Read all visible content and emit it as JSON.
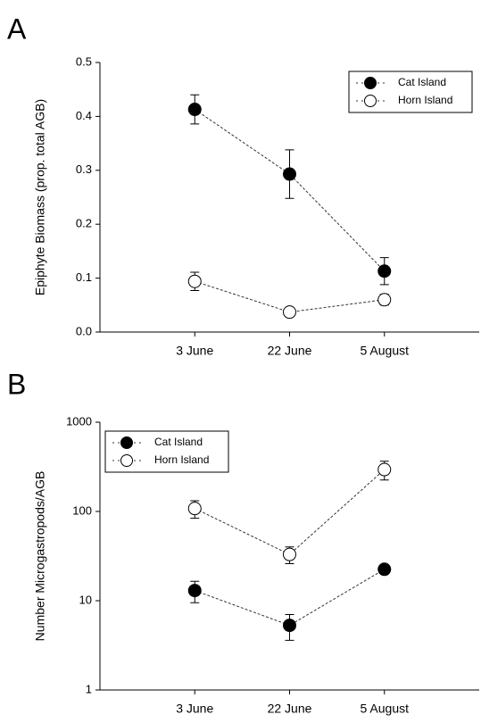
{
  "chart_data": [
    {
      "type": "line",
      "label": "A",
      "y_label": "Epiphyte Biomass (prop. total AGB)",
      "categories": [
        "3 June",
        "22 June",
        "5 August"
      ],
      "ylim": [
        0,
        0.5
      ],
      "yticks": [
        {
          "value": 0,
          "label": "0.0"
        },
        0.1,
        0.2,
        0.3,
        0.4,
        0.5
      ],
      "legend": "upper right",
      "series": [
        {
          "name": "Cat Island",
          "color": "#000000",
          "values": [
            0.413,
            0.293,
            0.113
          ],
          "errors": [
            0.027,
            0.045,
            0.025
          ]
        },
        {
          "name": "Horn Island",
          "color": "#ffffff",
          "values": [
            0.094,
            0.037,
            0.06
          ],
          "errors": [
            0.017,
            0.003,
            0.01
          ]
        }
      ]
    },
    {
      "type": "line",
      "label": "B",
      "y_label": "Number Microgastropods/AGB",
      "categories": [
        "3 June",
        "22 June",
        "5 August"
      ],
      "ylim": [
        1,
        1000
      ],
      "log_scale": true,
      "yticks": [
        1,
        10,
        100,
        1000
      ],
      "legend": "upper left",
      "series": [
        {
          "name": "Cat Island",
          "color": "#000000",
          "values": [
            13,
            5.3,
            22.5
          ],
          "errors": [
            3.5,
            1.7,
            2
          ]
        },
        {
          "name": "Horn Island",
          "color": "#ffffff",
          "values": [
            108,
            33,
            295
          ],
          "errors": [
            24,
            7,
            70
          ]
        }
      ]
    }
  ]
}
